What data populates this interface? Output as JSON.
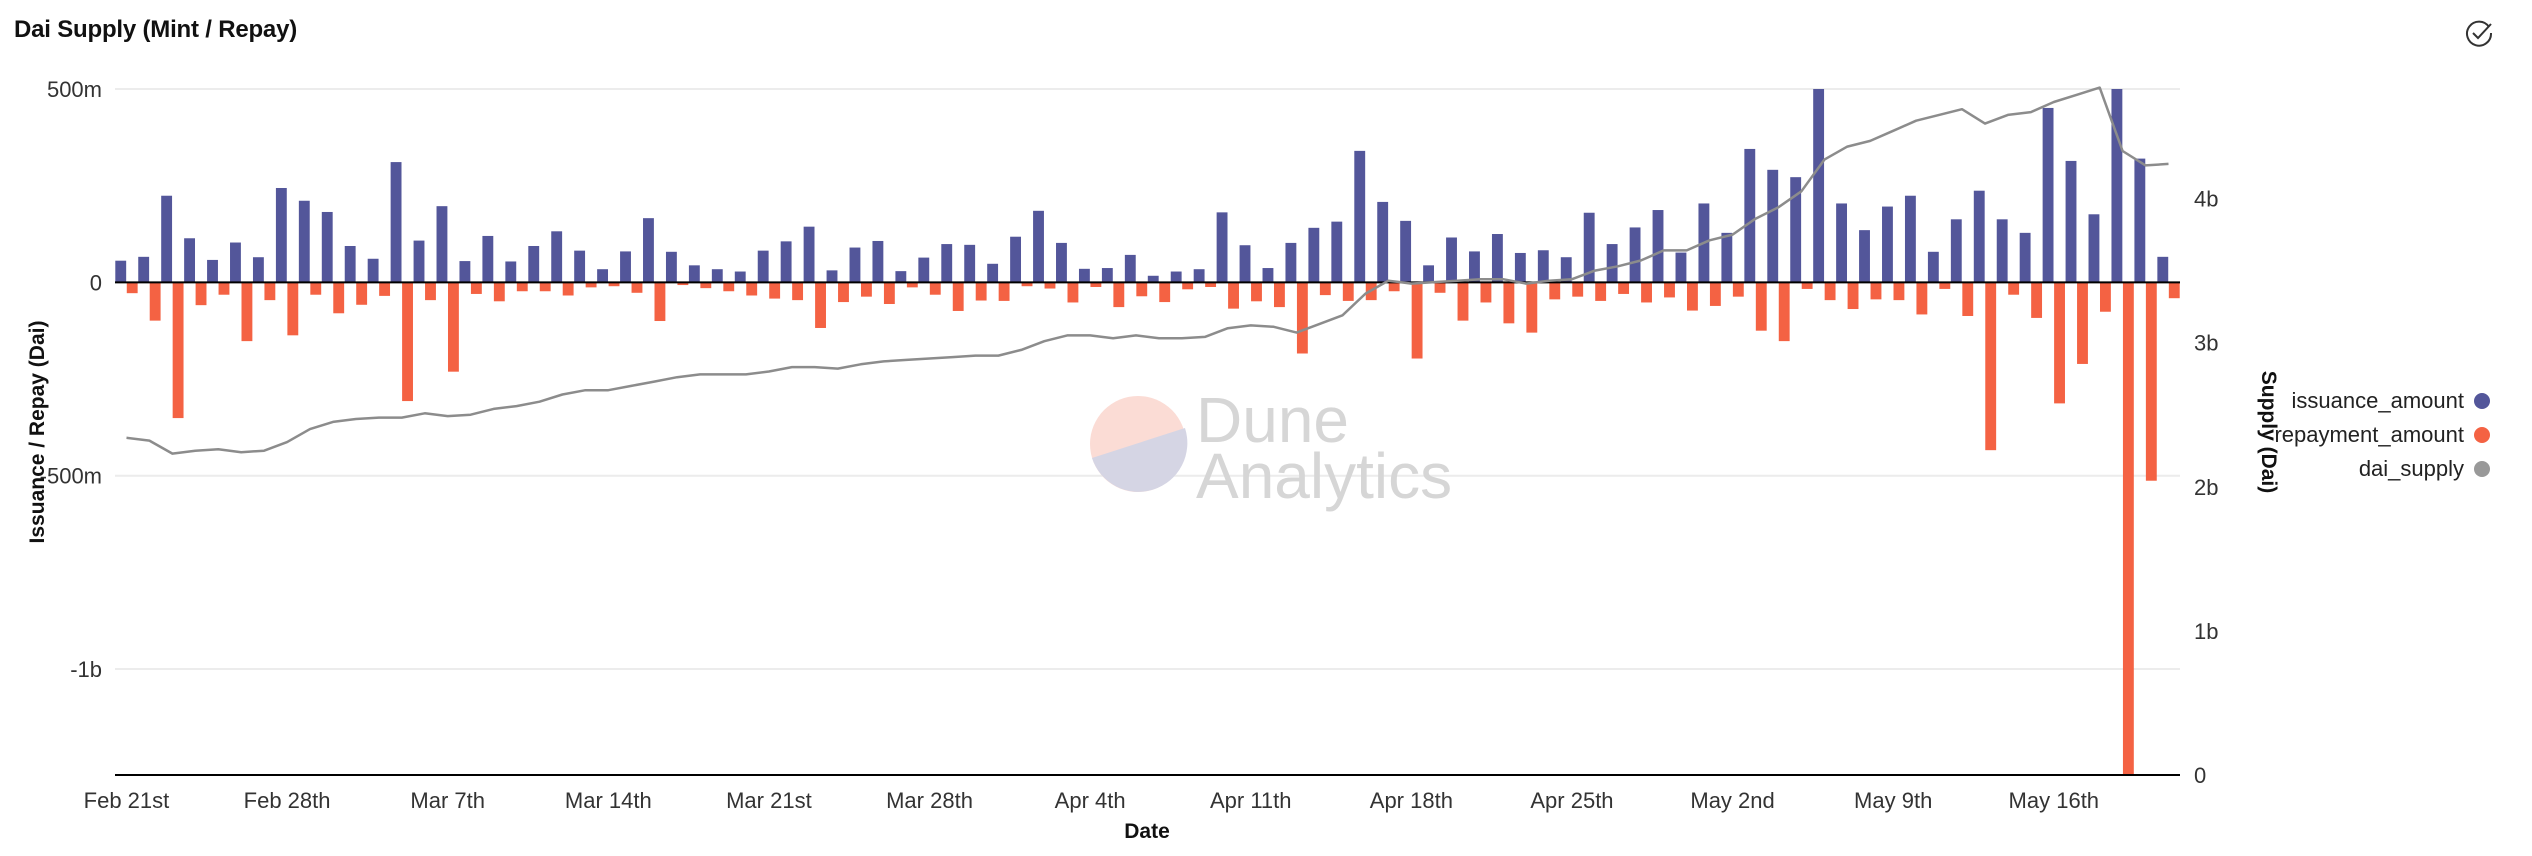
{
  "title": "Dai Supply (Mint / Repay)",
  "watermark": {
    "line1": "Dune",
    "line2": "Analytics"
  },
  "colors": {
    "issuance": "#53569a",
    "repayment": "#f46243",
    "supply": "#8c8c8c",
    "supply_dot": "#999999"
  },
  "chart_data": {
    "type": "bar+line",
    "title": "Dai Supply (Mint / Repay)",
    "xlabel": "Date",
    "ylabel_left": "Issuance / Repay (Dai)",
    "ylabel_right": "Supply (Dai)",
    "x_range": [
      "Feb 21st",
      "May 21st"
    ],
    "x_ticks": [
      {
        "index": 0,
        "label": "Feb 21st"
      },
      {
        "index": 7,
        "label": "Feb 28th"
      },
      {
        "index": 14,
        "label": "Mar 7th"
      },
      {
        "index": 21,
        "label": "Mar 14th"
      },
      {
        "index": 28,
        "label": "Mar 21st"
      },
      {
        "index": 35,
        "label": "Mar 28th"
      },
      {
        "index": 42,
        "label": "Apr 4th"
      },
      {
        "index": 49,
        "label": "Apr 11th"
      },
      {
        "index": 56,
        "label": "Apr 18th"
      },
      {
        "index": 63,
        "label": "Apr 25th"
      },
      {
        "index": 70,
        "label": "May 2nd"
      },
      {
        "index": 77,
        "label": "May 9th"
      },
      {
        "index": 84,
        "label": "May 16th"
      }
    ],
    "ylim_left_millions": [
      -1274,
      500
    ],
    "y_ticks_left": [
      {
        "value": 500,
        "label": "500m"
      },
      {
        "value": 0,
        "label": "0"
      },
      {
        "value": -500,
        "label": "-500m"
      },
      {
        "value": -1000,
        "label": "-1b"
      }
    ],
    "ylim_right_billions": [
      0,
      4.76
    ],
    "y_ticks_right": [
      {
        "value": 0,
        "label": "0"
      },
      {
        "value": 1,
        "label": "1b"
      },
      {
        "value": 2,
        "label": "2b"
      },
      {
        "value": 3,
        "label": "3b"
      },
      {
        "value": 4,
        "label": "4b"
      }
    ],
    "grid": true,
    "legend_position": "right",
    "series": [
      {
        "name": "issuance_amount",
        "kind": "bar",
        "unit": "millions",
        "values": [
          56,
          66,
          224,
          114,
          58,
          103,
          65,
          244,
          211,
          182,
          94,
          61,
          311,
          108,
          197,
          55,
          120,
          54,
          94,
          132,
          82,
          34,
          80,
          166,
          79,
          44,
          34,
          28,
          82,
          106,
          144,
          31,
          90,
          107,
          29,
          64,
          99,
          97,
          48,
          118,
          185,
          102,
          35,
          37,
          71,
          17,
          28,
          34,
          181,
          96,
          37,
          102,
          141,
          157,
          340,
          208,
          159,
          44,
          116,
          80,
          125,
          76,
          83,
          65,
          180,
          99,
          142,
          187,
          77,
          204,
          128,
          345,
          291,
          272,
          520,
          204,
          135,
          196,
          224,
          79,
          163,
          237,
          163,
          128,
          451,
          314,
          176,
          520,
          320,
          66
        ]
      },
      {
        "name": "repayment_amount",
        "legend_label": "repayment_amount",
        "kind": "bar",
        "unit": "millions",
        "values": [
          -28,
          -99,
          -351,
          -59,
          -32,
          -152,
          -46,
          -137,
          -32,
          -80,
          -58,
          -35,
          -307,
          -46,
          -231,
          -30,
          -49,
          -23,
          -23,
          -34,
          -13,
          -10,
          -27,
          -100,
          -7,
          -15,
          -23,
          -34,
          -42,
          -46,
          -118,
          -51,
          -37,
          -56,
          -13,
          -32,
          -74,
          -47,
          -48,
          -10,
          -16,
          -52,
          -12,
          -64,
          -36,
          -51,
          -18,
          -12,
          -68,
          -49,
          -64,
          -184,
          -33,
          -48,
          -46,
          -23,
          -197,
          -27,
          -99,
          -52,
          -106,
          -130,
          -44,
          -37,
          -48,
          -30,
          -52,
          -39,
          -73,
          -61,
          -37,
          -125,
          -152,
          -17,
          -46,
          -69,
          -44,
          -46,
          -83,
          -17,
          -87,
          -434,
          -32,
          -92,
          -313,
          -211,
          -76,
          -1300,
          -513,
          -41
        ]
      },
      {
        "name": "dai_supply",
        "kind": "line",
        "axis": "right",
        "unit": "billions",
        "values": [
          2.34,
          2.32,
          2.23,
          2.25,
          2.26,
          2.24,
          2.25,
          2.31,
          2.4,
          2.45,
          2.47,
          2.48,
          2.48,
          2.51,
          2.49,
          2.5,
          2.54,
          2.56,
          2.59,
          2.64,
          2.67,
          2.67,
          2.7,
          2.73,
          2.76,
          2.78,
          2.78,
          2.78,
          2.8,
          2.83,
          2.83,
          2.82,
          2.85,
          2.87,
          2.88,
          2.89,
          2.9,
          2.91,
          2.91,
          2.95,
          3.01,
          3.05,
          3.05,
          3.03,
          3.05,
          3.03,
          3.03,
          3.04,
          3.1,
          3.12,
          3.11,
          3.07,
          3.13,
          3.19,
          3.34,
          3.43,
          3.41,
          3.42,
          3.43,
          3.44,
          3.44,
          3.41,
          3.43,
          3.44,
          3.5,
          3.53,
          3.57,
          3.64,
          3.64,
          3.71,
          3.75,
          3.86,
          3.94,
          4.05,
          4.27,
          4.36,
          4.4,
          4.47,
          4.54,
          4.58,
          4.62,
          4.52,
          4.58,
          4.6,
          4.67,
          4.72,
          4.77,
          4.33,
          4.23,
          4.24
        ]
      }
    ]
  }
}
